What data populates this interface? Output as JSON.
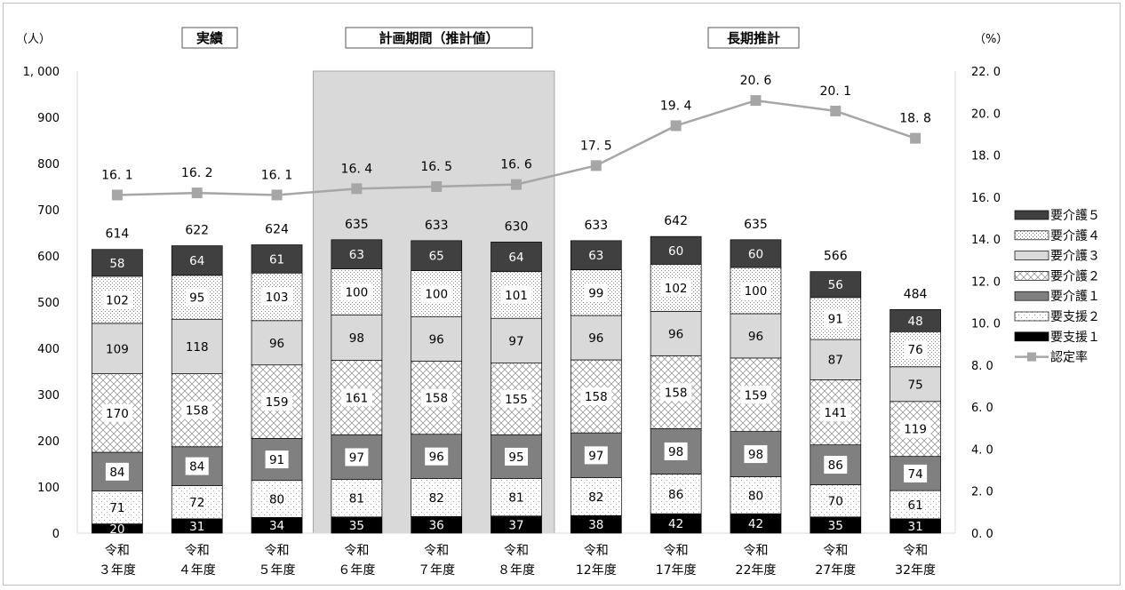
{
  "chart_data": {
    "type": "bar",
    "stacked": true,
    "categories": [
      [
        "令和",
        "３年度"
      ],
      [
        "令和",
        "４年度"
      ],
      [
        "令和",
        "５年度"
      ],
      [
        "令和",
        "６年度"
      ],
      [
        "令和",
        "７年度"
      ],
      [
        "令和",
        "８年度"
      ],
      [
        "令和",
        "12年度"
      ],
      [
        "令和",
        "17年度"
      ],
      [
        "令和",
        "22年度"
      ],
      [
        "令和",
        "27年度"
      ],
      [
        "令和",
        "32年度"
      ]
    ],
    "period_labels": [
      "実績",
      "計画期間（推計値）",
      "長期推計"
    ],
    "y_left": {
      "unit": "（人）",
      "min": 0,
      "max": 1000,
      "step": 100,
      "ticks": [
        "0",
        "100",
        "200",
        "300",
        "400",
        "500",
        "600",
        "700",
        "800",
        "900",
        "1, 000"
      ]
    },
    "y_right": {
      "unit": "（%）",
      "min": 0,
      "max": 22,
      "step": 2,
      "ticks": [
        "0. 0",
        "2. 0",
        "4. 0",
        "6. 0",
        "8. 0",
        "10. 0",
        "12. 0",
        "14. 0",
        "16. 0",
        "18. 0",
        "20. 0",
        "22. 0"
      ]
    },
    "series": [
      {
        "name": "要支援１",
        "values": [
          20,
          31,
          34,
          35,
          36,
          37,
          38,
          42,
          42,
          35,
          31
        ]
      },
      {
        "name": "要支援２",
        "values": [
          71,
          72,
          80,
          81,
          82,
          81,
          82,
          86,
          80,
          70,
          61
        ]
      },
      {
        "name": "要介護１",
        "values": [
          84,
          84,
          91,
          97,
          96,
          95,
          97,
          98,
          98,
          86,
          74
        ]
      },
      {
        "name": "要介護２",
        "values": [
          170,
          158,
          159,
          161,
          158,
          155,
          158,
          158,
          159,
          141,
          119
        ]
      },
      {
        "name": "要介護３",
        "values": [
          109,
          118,
          96,
          98,
          96,
          97,
          96,
          96,
          96,
          87,
          75
        ]
      },
      {
        "name": "要介護４",
        "values": [
          102,
          95,
          103,
          100,
          100,
          101,
          99,
          102,
          100,
          91,
          76
        ]
      },
      {
        "name": "要介護５",
        "values": [
          58,
          64,
          61,
          63,
          65,
          64,
          63,
          60,
          60,
          56,
          48
        ]
      }
    ],
    "totals": [
      614,
      622,
      624,
      635,
      633,
      630,
      633,
      642,
      635,
      566,
      484
    ],
    "line": {
      "name": "認定率",
      "axis": "right",
      "values": [
        16.1,
        16.2,
        16.1,
        16.4,
        16.5,
        16.6,
        17.5,
        19.4,
        20.6,
        20.1,
        18.8
      ],
      "labels": [
        "16. 1",
        "16. 2",
        "16. 1",
        "16. 4",
        "16. 5",
        "16. 6",
        "17. 5",
        "19. 4",
        "20. 6",
        "20. 1",
        "18. 8"
      ]
    },
    "legend_order": [
      "要介護５",
      "要介護４",
      "要介護３",
      "要介護２",
      "要介護１",
      "要支援２",
      "要支援１",
      "認定率"
    ],
    "legend_position": "right",
    "highlight_band": "令和６年度-令和８年度",
    "colors": {
      "band": "#d9d9d9",
      "line": "#a6a6a6",
      "youkaigo5": "#404040",
      "youkaigo3": "#d9d9d9",
      "youkaigo1": "#808080",
      "youshien1": "#000000"
    }
  }
}
